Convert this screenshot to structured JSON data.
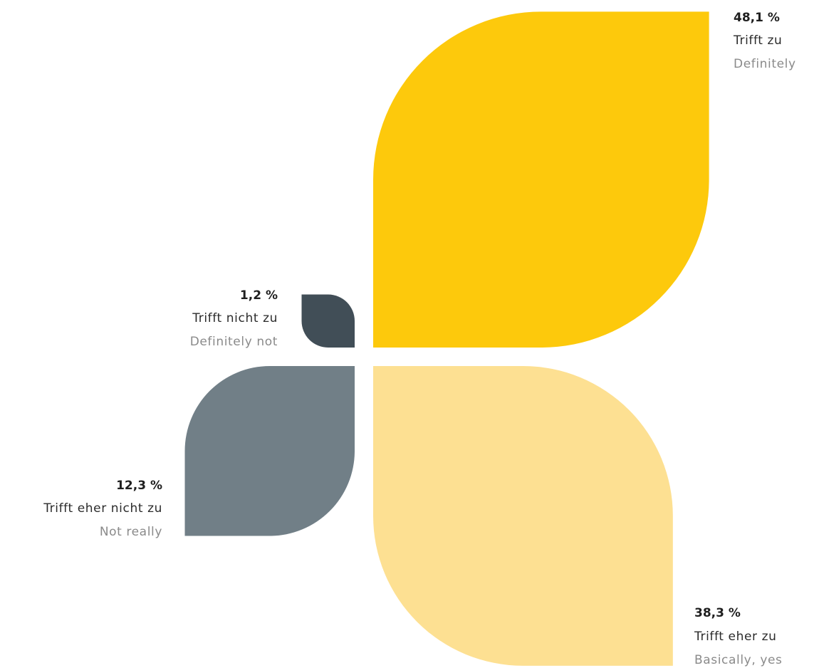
{
  "chart_data": {
    "type": "pie",
    "unit": "%",
    "slices": [
      {
        "value": 48.1,
        "value_label": "48,1 %",
        "label_de": "Trifft zu",
        "label_en": "Definitely",
        "color": "#FDC90C"
      },
      {
        "value": 38.3,
        "value_label": "38,3 %",
        "label_de": "Trifft eher zu",
        "label_en": "Basically, yes",
        "color": "#FDE092"
      },
      {
        "value": 12.3,
        "value_label": "12,3 %",
        "label_de": "Trifft eher nicht zu",
        "label_en": "Not really",
        "color": "#717F87"
      },
      {
        "value": 1.2,
        "value_label": "1,2 %",
        "label_de": "Trifft nicht zu",
        "label_en": "Definitely not",
        "color": "#414E57"
      }
    ]
  }
}
